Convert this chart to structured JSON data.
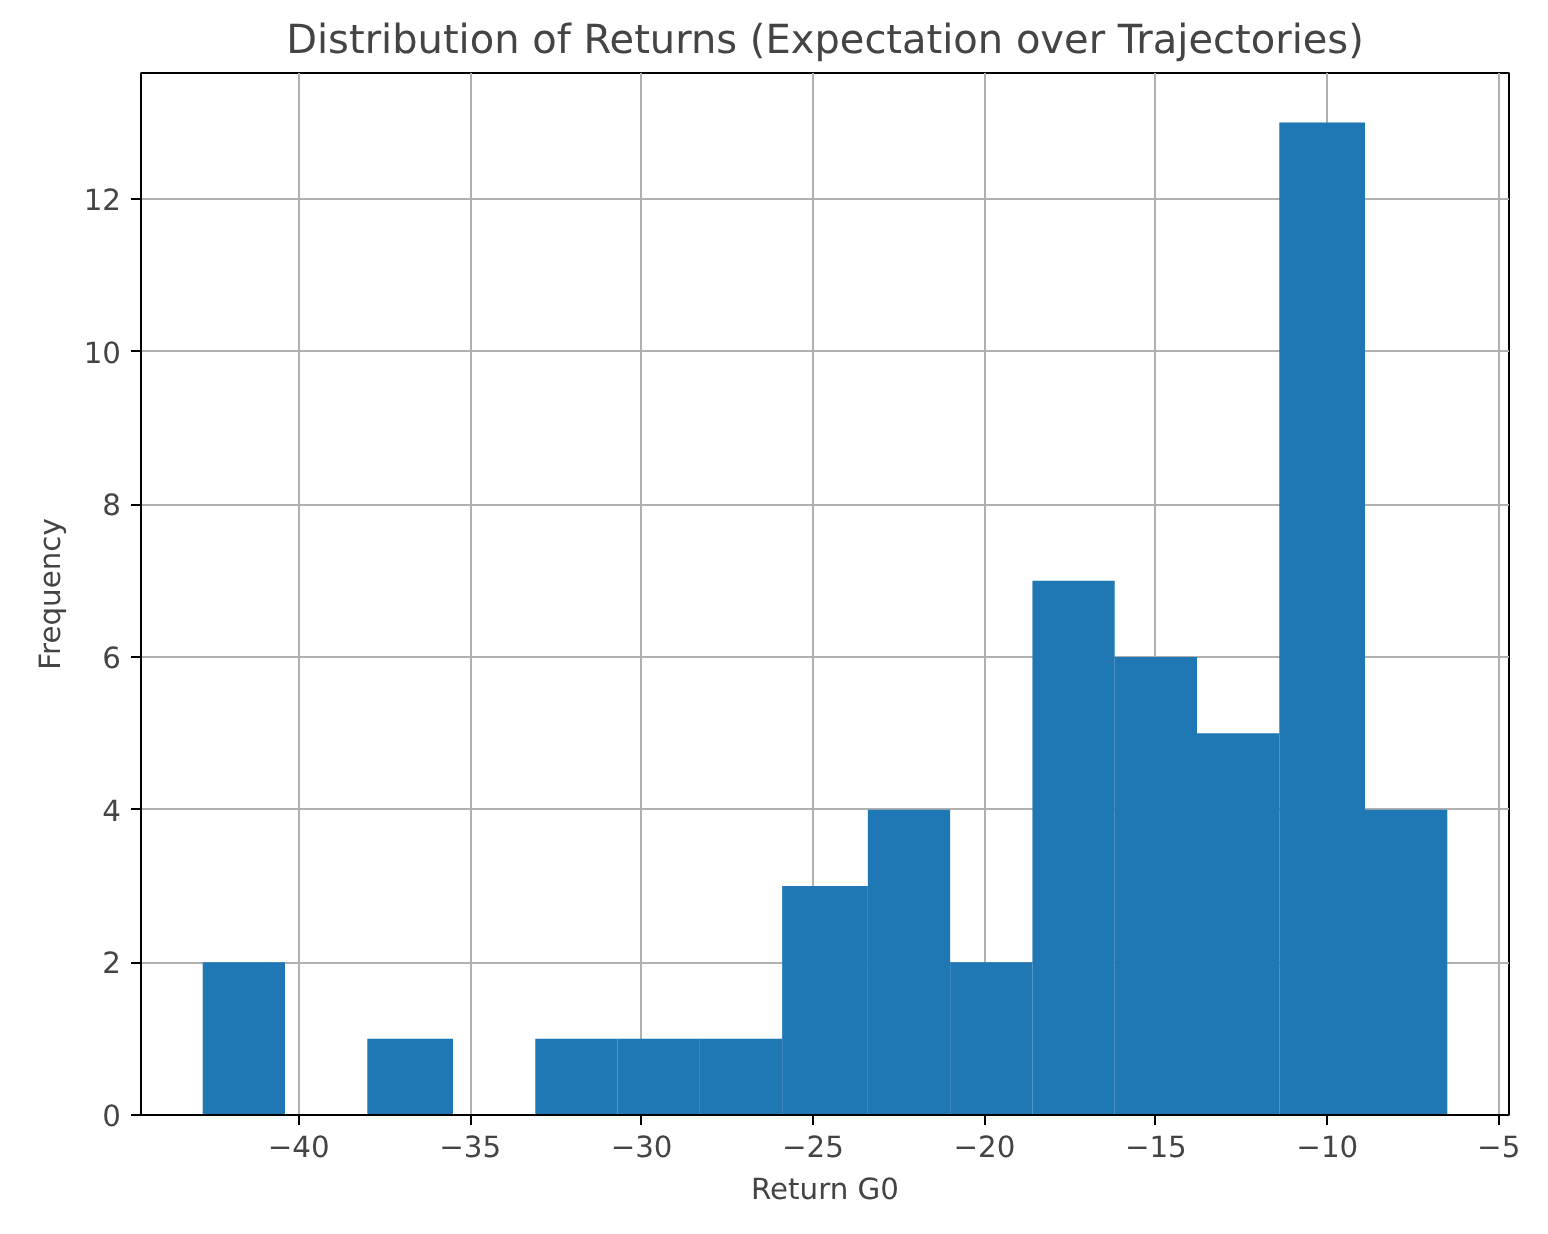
{
  "chart_data": {
    "type": "histogram",
    "title": "Distribution of Returns (Expectation over Trajectories)",
    "xlabel": "Return G0",
    "ylabel": "Frequency",
    "bins": [
      -42.8,
      -40.4,
      -38.0,
      -35.5,
      -33.1,
      -30.7,
      -28.3,
      -25.9,
      -23.4,
      -21.0,
      -18.6,
      -16.2,
      -13.8,
      -11.4,
      -8.9,
      -6.5
    ],
    "values": [
      2,
      0,
      1,
      0,
      1,
      1,
      1,
      3,
      4,
      2,
      7,
      6,
      5,
      13,
      4
    ],
    "color": "#1f77b4",
    "xlim": [
      -44.6,
      -4.7
    ],
    "xticks": [
      -40,
      -35,
      -30,
      -25,
      -20,
      -15,
      -10,
      -5
    ],
    "ylim": [
      0,
      13.65
    ],
    "yticks": [
      0,
      2,
      4,
      6,
      8,
      10,
      12
    ],
    "grid": true
  }
}
